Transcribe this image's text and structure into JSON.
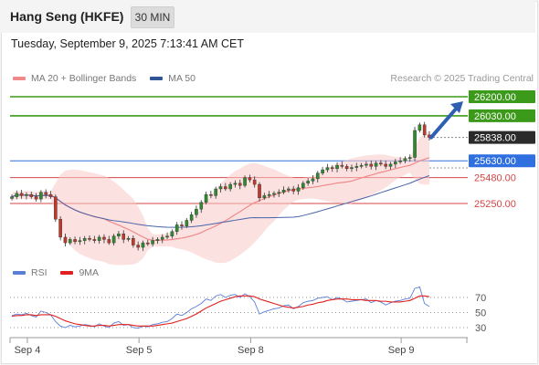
{
  "header": {
    "title": "Hang Seng (HKFE)",
    "timeframe": "30 MIN"
  },
  "timestamp": "Tuesday, September 9, 2025 7:13:41 AM CET",
  "legend": {
    "main": [
      {
        "label": "MA 20 + Bollinger Bands",
        "color": "#f08a8a"
      },
      {
        "label": "MA 50",
        "color": "#2f5597"
      }
    ],
    "rsi": [
      {
        "label": "RSI",
        "color": "#5a7fd6"
      },
      {
        "label": "9MA",
        "color": "#e02020"
      }
    ]
  },
  "credit": "Research © 2025 Trading Central",
  "chart_data": [
    {
      "type": "candlestick",
      "x_ticks": [
        "Sep 4",
        "Sep 5",
        "Sep 8",
        "Sep 9"
      ],
      "grid": false,
      "levels": [
        {
          "label": "26200.00",
          "value": 26200,
          "kind": "resistance",
          "color": "#3c9a1a"
        },
        {
          "label": "26030.00",
          "value": 26030,
          "kind": "resistance",
          "color": "#3c9a1a"
        },
        {
          "label": "25838.00",
          "value": 25838,
          "kind": "last-price",
          "color": "#2b2b2b"
        },
        {
          "label": "25630.00",
          "value": 25630,
          "kind": "pivot",
          "color": "#2f6fdf"
        },
        {
          "label": "25480.00",
          "value": 25480,
          "kind": "support",
          "color": "#d64545"
        },
        {
          "label": "25250.00",
          "value": 25250,
          "kind": "support",
          "color": "#d64545"
        }
      ],
      "close": [
        25310,
        25340,
        25320,
        25330,
        25310,
        25290,
        25350,
        25330,
        25310,
        25110,
        24950,
        24900,
        24930,
        24910,
        24920,
        24940,
        24930,
        24920,
        24950,
        24930,
        24900,
        24960,
        24980,
        24930,
        24940,
        24880,
        24860,
        24900,
        24890,
        24920,
        24930,
        24950,
        24960,
        25000,
        25060,
        25050,
        25100,
        25150,
        25200,
        25260,
        25330,
        25320,
        25380,
        25400,
        25380,
        25420,
        25430,
        25410,
        25480,
        25460,
        25420,
        25300,
        25320,
        25330,
        25340,
        25350,
        25370,
        25380,
        25360,
        25390,
        25430,
        25450,
        25470,
        25520,
        25550,
        25570,
        25560,
        25590,
        25580,
        25560,
        25570,
        25580,
        25590,
        25600,
        25580,
        25610,
        25600,
        25580,
        25600,
        25620,
        25630,
        25650,
        25660,
        25900,
        25950,
        25860,
        25838
      ],
      "y_range": [
        24700,
        26230
      ],
      "projection": {
        "from_price": 25838,
        "to_price": 26200
      }
    },
    {
      "type": "line",
      "title": "RSI",
      "series": [
        {
          "name": "RSI",
          "values": [
            46,
            48,
            47,
            49,
            46,
            44,
            52,
            50,
            47,
            38,
            32,
            30,
            33,
            31,
            32,
            34,
            33,
            31,
            35,
            32,
            30,
            36,
            38,
            33,
            34,
            30,
            29,
            32,
            31,
            34,
            35,
            37,
            38,
            42,
            48,
            46,
            50,
            55,
            58,
            62,
            68,
            66,
            72,
            74,
            70,
            73,
            74,
            70,
            75,
            71,
            64,
            48,
            51,
            53,
            55,
            56,
            59,
            60,
            55,
            58,
            63,
            65,
            66,
            69,
            70,
            71,
            67,
            70,
            68,
            64,
            65,
            66,
            67,
            68,
            63,
            66,
            64,
            60,
            63,
            65,
            66,
            68,
            69,
            82,
            84,
            62,
            58
          ]
        },
        {
          "name": "9MA",
          "values": [
            45,
            46,
            46,
            47,
            47,
            46,
            47,
            47,
            47,
            45,
            42,
            39,
            37,
            35,
            34,
            33,
            32,
            32,
            33,
            33,
            32,
            33,
            34,
            34,
            34,
            33,
            32,
            32,
            32,
            32,
            33,
            34,
            35,
            36,
            38,
            40,
            42,
            45,
            48,
            52,
            56,
            59,
            62,
            65,
            67,
            69,
            71,
            72,
            72,
            72,
            71,
            68,
            66,
            64,
            62,
            60,
            58,
            57,
            56,
            57,
            58,
            60,
            61,
            63,
            64,
            66,
            67,
            68,
            68,
            68,
            67,
            67,
            67,
            66,
            66,
            66,
            65,
            65,
            64,
            64,
            64,
            65,
            66,
            69,
            72,
            72,
            71
          ]
        }
      ],
      "y_ticks": [
        70,
        50,
        30
      ],
      "ylim": [
        20,
        90
      ]
    }
  ]
}
